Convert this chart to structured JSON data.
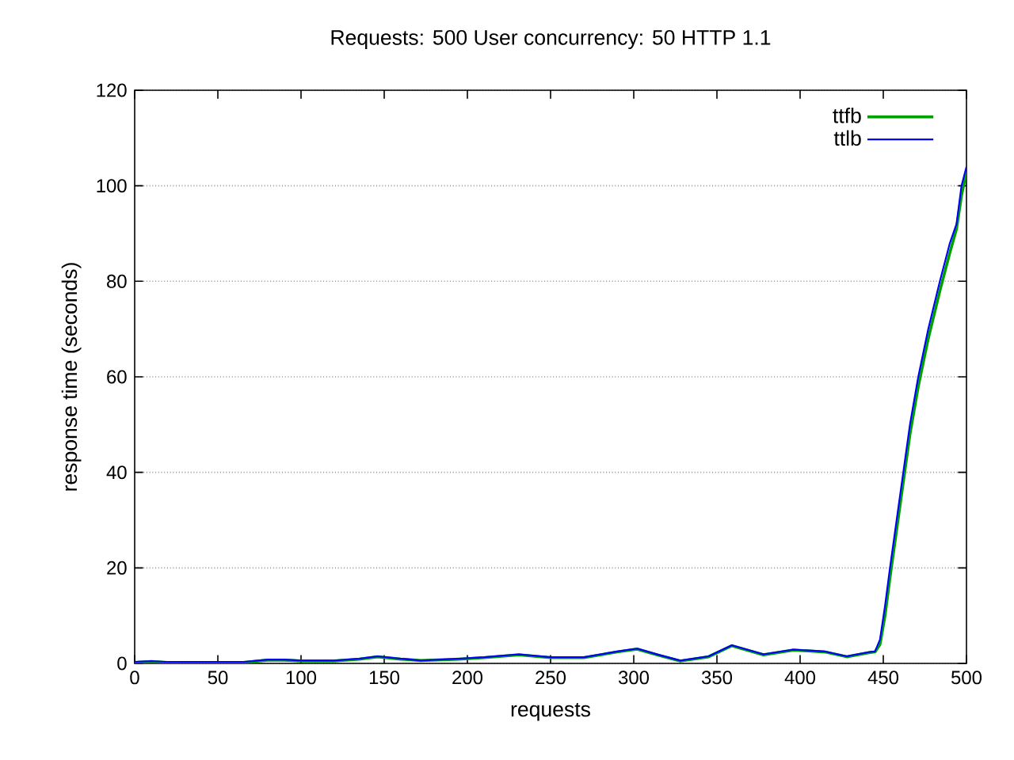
{
  "chart_data": {
    "type": "line",
    "title": "Requests: 500   User concurrency: 50   HTTP 1.1",
    "xlabel": "requests",
    "ylabel": "response time (seconds)",
    "xlim": [
      0,
      500
    ],
    "ylim": [
      0,
      120
    ],
    "xticks": [
      0,
      50,
      100,
      150,
      200,
      250,
      300,
      350,
      400,
      450,
      500
    ],
    "yticks": [
      0,
      20,
      40,
      60,
      80,
      100,
      120
    ],
    "grid": "y",
    "legend": "top right",
    "marker": "none",
    "line_style": "solid",
    "x": [
      0,
      10,
      20,
      50,
      65,
      80,
      90,
      100,
      120,
      135,
      146,
      160,
      172,
      195,
      210,
      231,
      250,
      270,
      290,
      302,
      315,
      328,
      345,
      359,
      378,
      396,
      415,
      428,
      442,
      445,
      448,
      451,
      454,
      458,
      462,
      466,
      471,
      477,
      484,
      490,
      494,
      497,
      500
    ],
    "series": [
      {
        "name": "ttfb",
        "color": "#00a000",
        "values": [
          0.2,
          0.4,
          0.2,
          0.2,
          0.2,
          0.7,
          0.7,
          0.5,
          0.5,
          0.9,
          1.4,
          0.9,
          0.6,
          0.9,
          1.2,
          1.8,
          1.2,
          1.2,
          2.4,
          3.0,
          1.7,
          0.5,
          1.4,
          3.7,
          1.8,
          2.8,
          2.4,
          1.4,
          2.3,
          2.4,
          4,
          10,
          18,
          28,
          38,
          48,
          58,
          68,
          78,
          86,
          91,
          98,
          103
        ]
      },
      {
        "name": "ttlb",
        "color": "#0000ff",
        "values": [
          0.3,
          0.5,
          0.3,
          0.3,
          0.3,
          0.8,
          0.8,
          0.6,
          0.6,
          1.0,
          1.5,
          1.0,
          0.6,
          1.0,
          1.3,
          1.9,
          1.3,
          1.3,
          2.5,
          3.1,
          1.8,
          0.6,
          1.5,
          3.8,
          1.9,
          2.9,
          2.5,
          1.5,
          2.4,
          2.5,
          5,
          12,
          20,
          30,
          40,
          50,
          60,
          70,
          80,
          88,
          92,
          100,
          104
        ]
      }
    ]
  }
}
